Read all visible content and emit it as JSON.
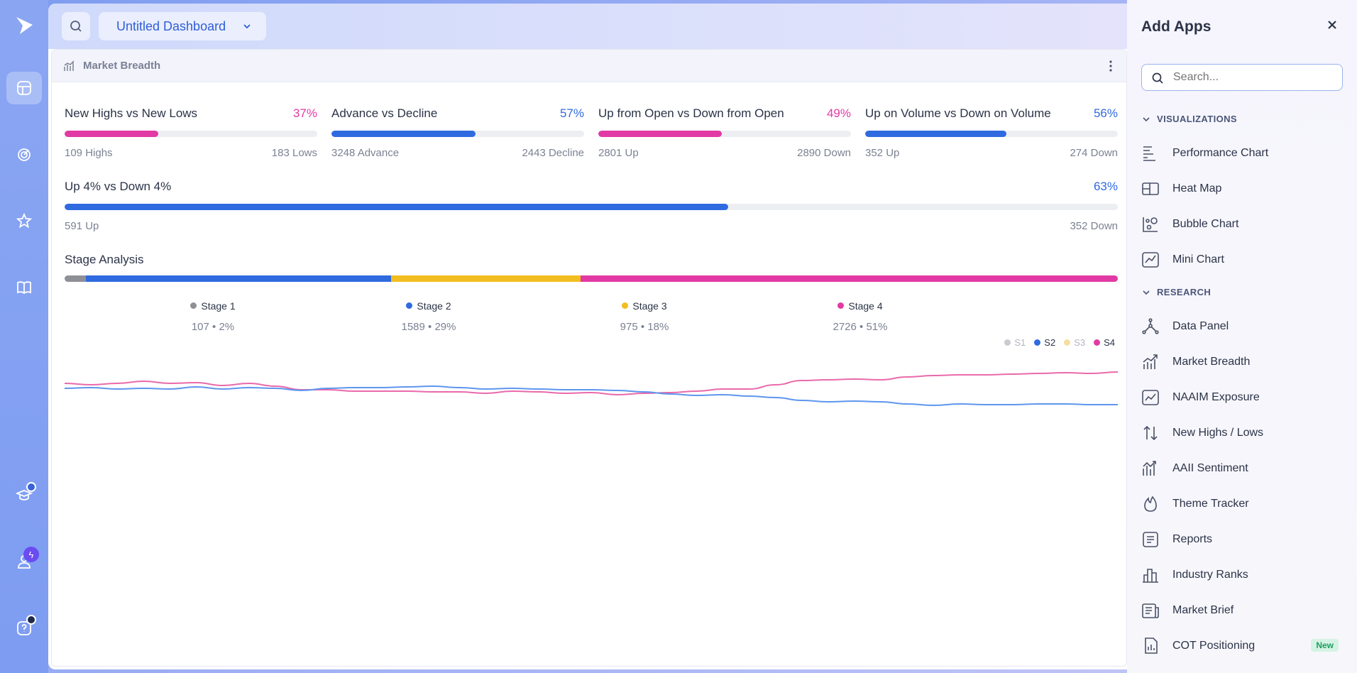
{
  "header": {
    "dashboard_name": "Untitled Dashboard"
  },
  "panel": {
    "title": "Market Breadth"
  },
  "metrics": [
    {
      "label": "New Highs vs New Lows",
      "pct": "37%",
      "value": 0.37,
      "left": "109 Highs",
      "right": "183 Lows",
      "color": "#e23aa4"
    },
    {
      "label": "Advance vs Decline",
      "pct": "57%",
      "value": 0.57,
      "left": "3248 Advance",
      "right": "2443 Decline",
      "color": "#2f6ae0"
    },
    {
      "label": "Up from Open vs Down from Open",
      "pct": "49%",
      "value": 0.49,
      "left": "2801 Up",
      "right": "2890 Down",
      "color": "#e23aa4"
    },
    {
      "label": "Up on Volume vs Down on Volume",
      "pct": "56%",
      "value": 0.56,
      "left": "352 Up",
      "right": "274 Down",
      "color": "#2f6ae0"
    }
  ],
  "wide_metric": {
    "label": "Up 4% vs Down 4%",
    "pct": "63%",
    "value": 0.63,
    "left": "591 Up",
    "right": "352 Down",
    "color": "#2f6ae0"
  },
  "stage_analysis": {
    "title": "Stage Analysis",
    "stages": [
      {
        "name": "Stage 1",
        "value": "107 • 2%",
        "share": 0.02,
        "color": "#8f9096"
      },
      {
        "name": "Stage 2",
        "value": "1589 • 29%",
        "share": 0.29,
        "color": "#2f6ae0"
      },
      {
        "name": "Stage 3",
        "value": "975 • 18%",
        "share": 0.18,
        "color": "#f1bd1f"
      },
      {
        "name": "Stage 4",
        "value": "2726 • 51%",
        "share": 0.51,
        "color": "#e23aa4"
      }
    ]
  },
  "chart_legend": [
    {
      "name": "S1",
      "color": "#c9cbd1",
      "active": false
    },
    {
      "name": "S2",
      "color": "#2f6ae0",
      "active": true
    },
    {
      "name": "S3",
      "color": "#f6dea0",
      "active": false
    },
    {
      "name": "S4",
      "color": "#e23aa4",
      "active": true
    }
  ],
  "chart_data": {
    "type": "line",
    "title": "",
    "xlabel": "",
    "ylabel": "",
    "series": [
      {
        "name": "S4",
        "color": "#e96aaa",
        "values": [
          60,
          58,
          60,
          63,
          60,
          61,
          57,
          60,
          56,
          51,
          51,
          49,
          49,
          49,
          48,
          48,
          46,
          49,
          48,
          46,
          47,
          44,
          46,
          47,
          49,
          52,
          52,
          58,
          64,
          65,
          66,
          65,
          69,
          71,
          72,
          72,
          73,
          74,
          75,
          74,
          76
        ]
      },
      {
        "name": "S2",
        "color": "#5e96ee",
        "values": [
          53,
          54,
          52,
          53,
          52,
          55,
          52,
          54,
          53,
          50,
          53,
          54,
          54,
          55,
          56,
          54,
          52,
          53,
          52,
          51,
          51,
          50,
          48,
          45,
          43,
          44,
          42,
          40,
          36,
          34,
          35,
          34,
          31,
          29,
          31,
          30,
          30,
          31,
          31,
          30,
          30
        ]
      }
    ],
    "ylim": [
      0,
      100
    ]
  },
  "drawer": {
    "title": "Add Apps",
    "search_placeholder": "Search...",
    "sections": [
      {
        "label": "VISUALIZATIONS",
        "items": [
          {
            "label": "Performance Chart",
            "icon": "performance-chart-icon"
          },
          {
            "label": "Heat Map",
            "icon": "heat-map-icon"
          },
          {
            "label": "Bubble Chart",
            "icon": "bubble-chart-icon"
          },
          {
            "label": "Mini Chart",
            "icon": "mini-chart-icon"
          }
        ]
      },
      {
        "label": "RESEARCH",
        "items": [
          {
            "label": "Data Panel",
            "icon": "data-panel-icon"
          },
          {
            "label": "Market Breadth",
            "icon": "market-breadth-icon"
          },
          {
            "label": "NAAIM Exposure",
            "icon": "naaim-exposure-icon"
          },
          {
            "label": "New Highs / Lows",
            "icon": "highs-lows-icon"
          },
          {
            "label": "AAII Sentiment",
            "icon": "aaii-sentiment-icon"
          },
          {
            "label": "Theme Tracker",
            "icon": "flame-icon"
          },
          {
            "label": "Reports",
            "icon": "reports-icon"
          },
          {
            "label": "Industry Ranks",
            "icon": "industry-ranks-icon"
          },
          {
            "label": "Market Brief",
            "icon": "market-brief-icon"
          },
          {
            "label": "COT Positioning",
            "icon": "cot-positioning-icon",
            "badge": "New"
          }
        ]
      }
    ]
  }
}
